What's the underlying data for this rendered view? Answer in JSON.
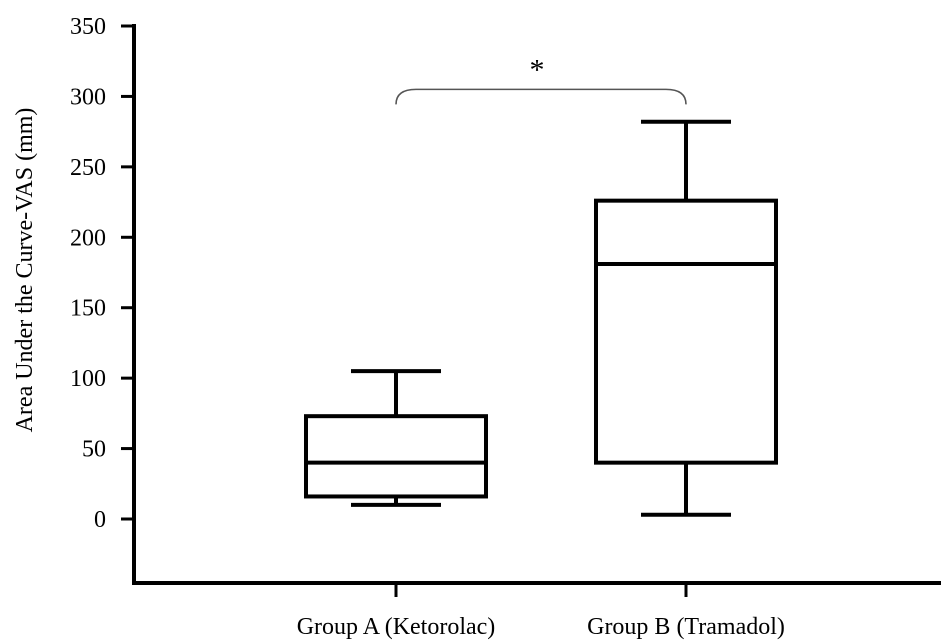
{
  "chart_data": {
    "type": "box",
    "ylabel": "Area Under the Curve-VAS (mm)",
    "xlabel": "",
    "ylim": [
      -45,
      350
    ],
    "yticks": [
      0,
      50,
      100,
      150,
      200,
      250,
      300,
      350
    ],
    "yticklabels": [
      "0",
      "50",
      "100",
      "150",
      "200",
      "250",
      "300",
      "350"
    ],
    "grid": false,
    "series": [
      {
        "category": "Group A (Ketorolac)",
        "min": 10,
        "q1": 16,
        "median": 40,
        "q3": 73,
        "max": 105
      },
      {
        "category": "Group B (Tramadol)",
        "min": 3,
        "q1": 40,
        "median": 181,
        "q3": 226,
        "max": 282
      }
    ],
    "annotation": {
      "label": "*",
      "between": [
        0,
        1
      ],
      "y": 305
    },
    "stroke_color": "#000000"
  }
}
